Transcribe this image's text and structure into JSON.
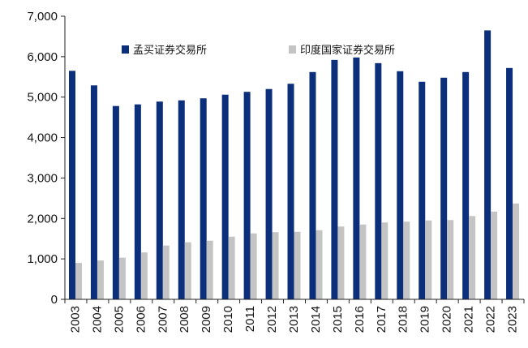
{
  "chart_data": {
    "type": "bar",
    "categories": [
      "2003",
      "2004",
      "2005",
      "2006",
      "2007",
      "2008",
      "2009",
      "2010",
      "2011",
      "2012",
      "2013",
      "2014",
      "2015",
      "2016",
      "2017",
      "2018",
      "2019",
      "2020",
      "2021",
      "2022",
      "2023"
    ],
    "series": [
      {
        "name": "孟买证券交易所",
        "color": "#0b2f7a",
        "values": [
          5650,
          5290,
          4780,
          4820,
          4890,
          4920,
          4970,
          5060,
          5130,
          5200,
          5330,
          5620,
          5920,
          5980,
          5840,
          5640,
          5380,
          5480,
          5620,
          6650,
          5720
        ]
      },
      {
        "name": "印度国家证券交易所",
        "color": "#c4c4c4",
        "values": [
          900,
          960,
          1030,
          1160,
          1330,
          1410,
          1450,
          1550,
          1630,
          1660,
          1670,
          1710,
          1800,
          1850,
          1900,
          1920,
          1950,
          1960,
          2060,
          2170,
          2370
        ]
      }
    ],
    "ylim": [
      0,
      7000
    ],
    "yticks": [
      0,
      1000,
      2000,
      3000,
      4000,
      5000,
      6000,
      7000
    ],
    "ytick_labels": [
      "0",
      "1,000",
      "2,000",
      "3,000",
      "4,000",
      "5,000",
      "6,000",
      "7,000"
    ],
    "legend_position": "top",
    "grid": false,
    "title": "",
    "xlabel": "",
    "ylabel": ""
  }
}
